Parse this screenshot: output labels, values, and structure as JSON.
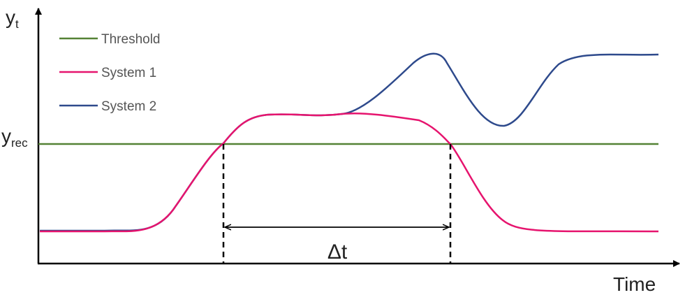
{
  "axes": {
    "y_label_main": "y",
    "y_label_sub": "t",
    "x_label": "Time",
    "y_tick_main": "y",
    "y_tick_sub": "rec"
  },
  "legend": [
    {
      "label": "Threshold",
      "color": "#548235"
    },
    {
      "label": "System 1",
      "color": "#e6146e"
    },
    {
      "label": "System 2",
      "color": "#2e4a8c"
    }
  ],
  "annotation": {
    "delta_label": "Δt"
  }
}
